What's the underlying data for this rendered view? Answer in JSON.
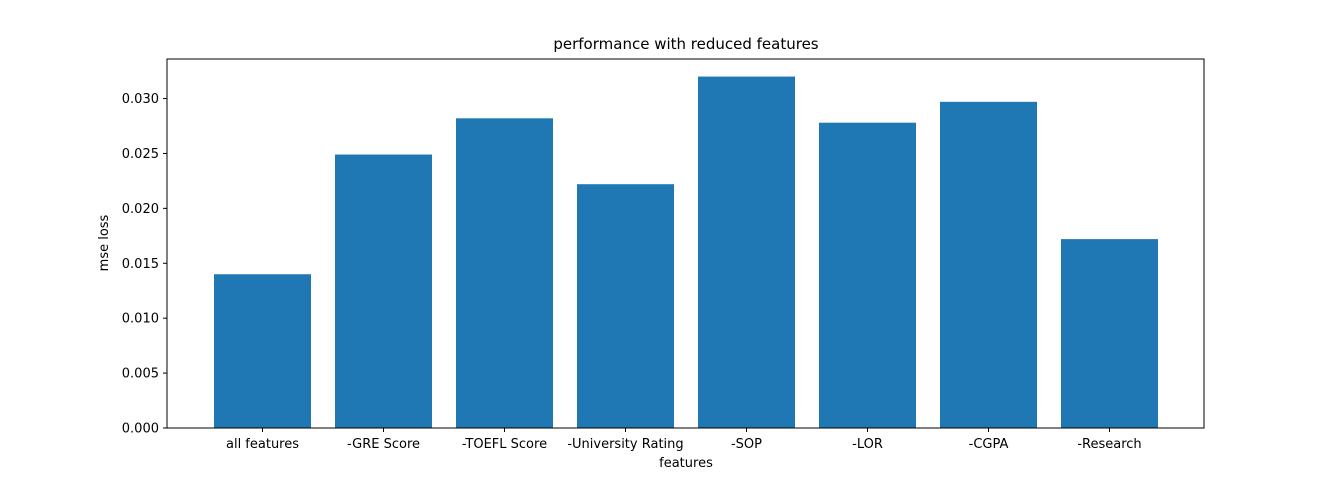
{
  "chart_data": {
    "type": "bar",
    "title": "performance with reduced features",
    "xlabel": "features",
    "ylabel": "mse loss",
    "categories": [
      "all features",
      "-GRE Score",
      "-TOEFL Score",
      "-University Rating",
      "-SOP",
      "-LOR",
      "-CGPA",
      "-Research"
    ],
    "values": [
      0.014,
      0.0249,
      0.0282,
      0.0222,
      0.032,
      0.0278,
      0.0297,
      0.0172
    ],
    "ylim": [
      0,
      0.0336
    ],
    "yticks": [
      "0.000",
      "0.005",
      "0.010",
      "0.015",
      "0.020",
      "0.025",
      "0.030"
    ],
    "ytick_values": [
      0,
      0.005,
      0.01,
      0.015,
      0.02,
      0.025,
      0.03
    ],
    "bar_color": "#1f77b4",
    "grid": false,
    "legend": false
  }
}
